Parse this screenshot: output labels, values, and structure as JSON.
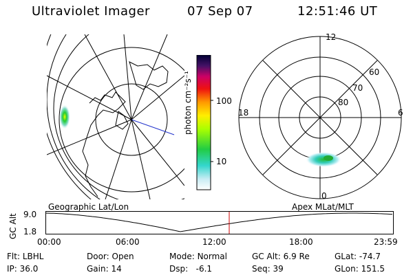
{
  "header": {
    "title": "Ultraviolet Imager",
    "date": "07 Sep 07",
    "time": "12:51:46 UT"
  },
  "colorbar": {
    "label": "photon cm⁻²s⁻¹",
    "ticks": [
      "100",
      "10"
    ]
  },
  "polar_plot": {
    "hour_labels": [
      "12",
      "18",
      "6",
      "0"
    ],
    "lat_labels": [
      "60",
      "70",
      "80"
    ]
  },
  "panel_labels": {
    "left": "Geographic Lat/Lon",
    "right": "Apex MLat/MLT"
  },
  "altitude_plot": {
    "axis_label": "GC Alt",
    "y_ticks": [
      "9.0",
      "1.8"
    ],
    "x_ticks": [
      "00:00",
      "06:00",
      "12:00",
      "18:00",
      "23:59"
    ]
  },
  "info": {
    "filter_label": "Flt:",
    "filter_value": "LBHL",
    "ip_label": "IP:",
    "ip_value": "36.0",
    "door_label": "Door:",
    "door_value": "Open",
    "gain_label": "Gain:",
    "gain_value": "14",
    "mode_label": "Mode:",
    "mode_value": "Normal",
    "dsp_label": "Dsp:",
    "dsp_value": "-6.1",
    "gcalt_label": "GC Alt:",
    "gcalt_value": "6.9 Re",
    "seq_label": "Seq:",
    "seq_value": "39",
    "glat_label": "GLat:",
    "glat_value": "-74.7",
    "glon_label": "GLon:",
    "glon_value": "151.5"
  },
  "colors": {
    "trace": "#000000",
    "marker": "#cc0000",
    "projection_line": "#2233cc"
  }
}
